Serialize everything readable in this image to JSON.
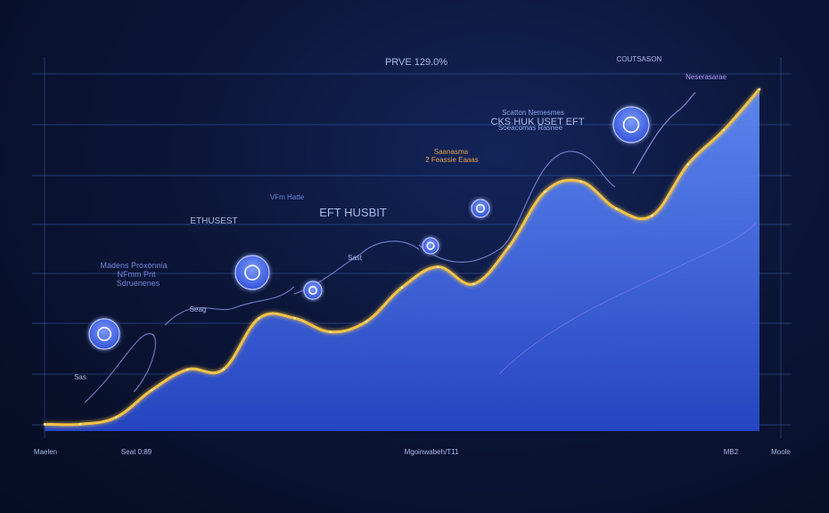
{
  "colors": {
    "background": "#0b1638",
    "grid": "#3c5fa8",
    "area_fill_top": "#5a86f5",
    "area_fill_bottom": "#2a4fd0",
    "curve": "#f2c24a",
    "thread": "#8e9cf5",
    "icon_fill": "#4d6fe6",
    "text": "#a9b9e8",
    "text_accent": "#e0a24a",
    "text_violet": "#b59cff"
  },
  "chart_data": {
    "type": "area",
    "title": "PRVE 129.0%",
    "x": [
      0,
      5,
      10,
      15,
      20,
      25,
      30,
      35,
      40,
      45,
      50,
      55,
      60,
      65,
      70,
      75,
      80,
      85,
      90,
      95,
      100
    ],
    "series": [
      {
        "values": [
          2,
          2,
          4,
          12,
          18,
          18,
          33,
          33,
          29,
          32,
          42,
          48,
          43,
          54,
          70,
          73,
          65,
          63,
          78,
          88,
          100
        ]
      }
    ],
    "ylim": [
      0,
      100
    ],
    "xlim": [
      0,
      100
    ],
    "grid": true,
    "legend": "none",
    "annotations": [
      {
        "text": "Madens Proxonnia",
        "color": "#6f86d8"
      },
      {
        "text": "NFmm Prit",
        "color": "#6f86d8"
      },
      {
        "text": "Sdruenenes",
        "color": "#6f86d8"
      },
      {
        "text": "ETHUSEST",
        "color": "#a9b9e8"
      },
      {
        "text": "VFm Hatte",
        "color": "#6f86d8"
      },
      {
        "text": "EFT HUSBIT",
        "color": "#a9b9e8"
      },
      {
        "text": "Scatton Nemesmes",
        "color": "#8fa3e6"
      },
      {
        "text": "CKS HUK USET EFT",
        "color": "#a9b9e8"
      },
      {
        "text": "Soeacomas Rasnee",
        "color": "#8fa3e6"
      },
      {
        "text": "Saanasma",
        "color": "#e0a24a"
      },
      {
        "text": "2 Feassie Eaaas",
        "color": "#e0a24a"
      },
      {
        "text": "COUTSASON",
        "color": "#a9b9e8"
      },
      {
        "text": "Neserasarae",
        "color": "#b59cff"
      },
      {
        "text": "Seag",
        "color": "#a9b9e8"
      },
      {
        "text": "Sast",
        "color": "#a9b9e8"
      },
      {
        "text": "Sas",
        "color": "#a9b9e8"
      }
    ],
    "x_tick_labels": [
      "Maelen",
      "Seat 0:89",
      "Mgoinwabeh/T11",
      "MB2",
      "Moole"
    ]
  }
}
